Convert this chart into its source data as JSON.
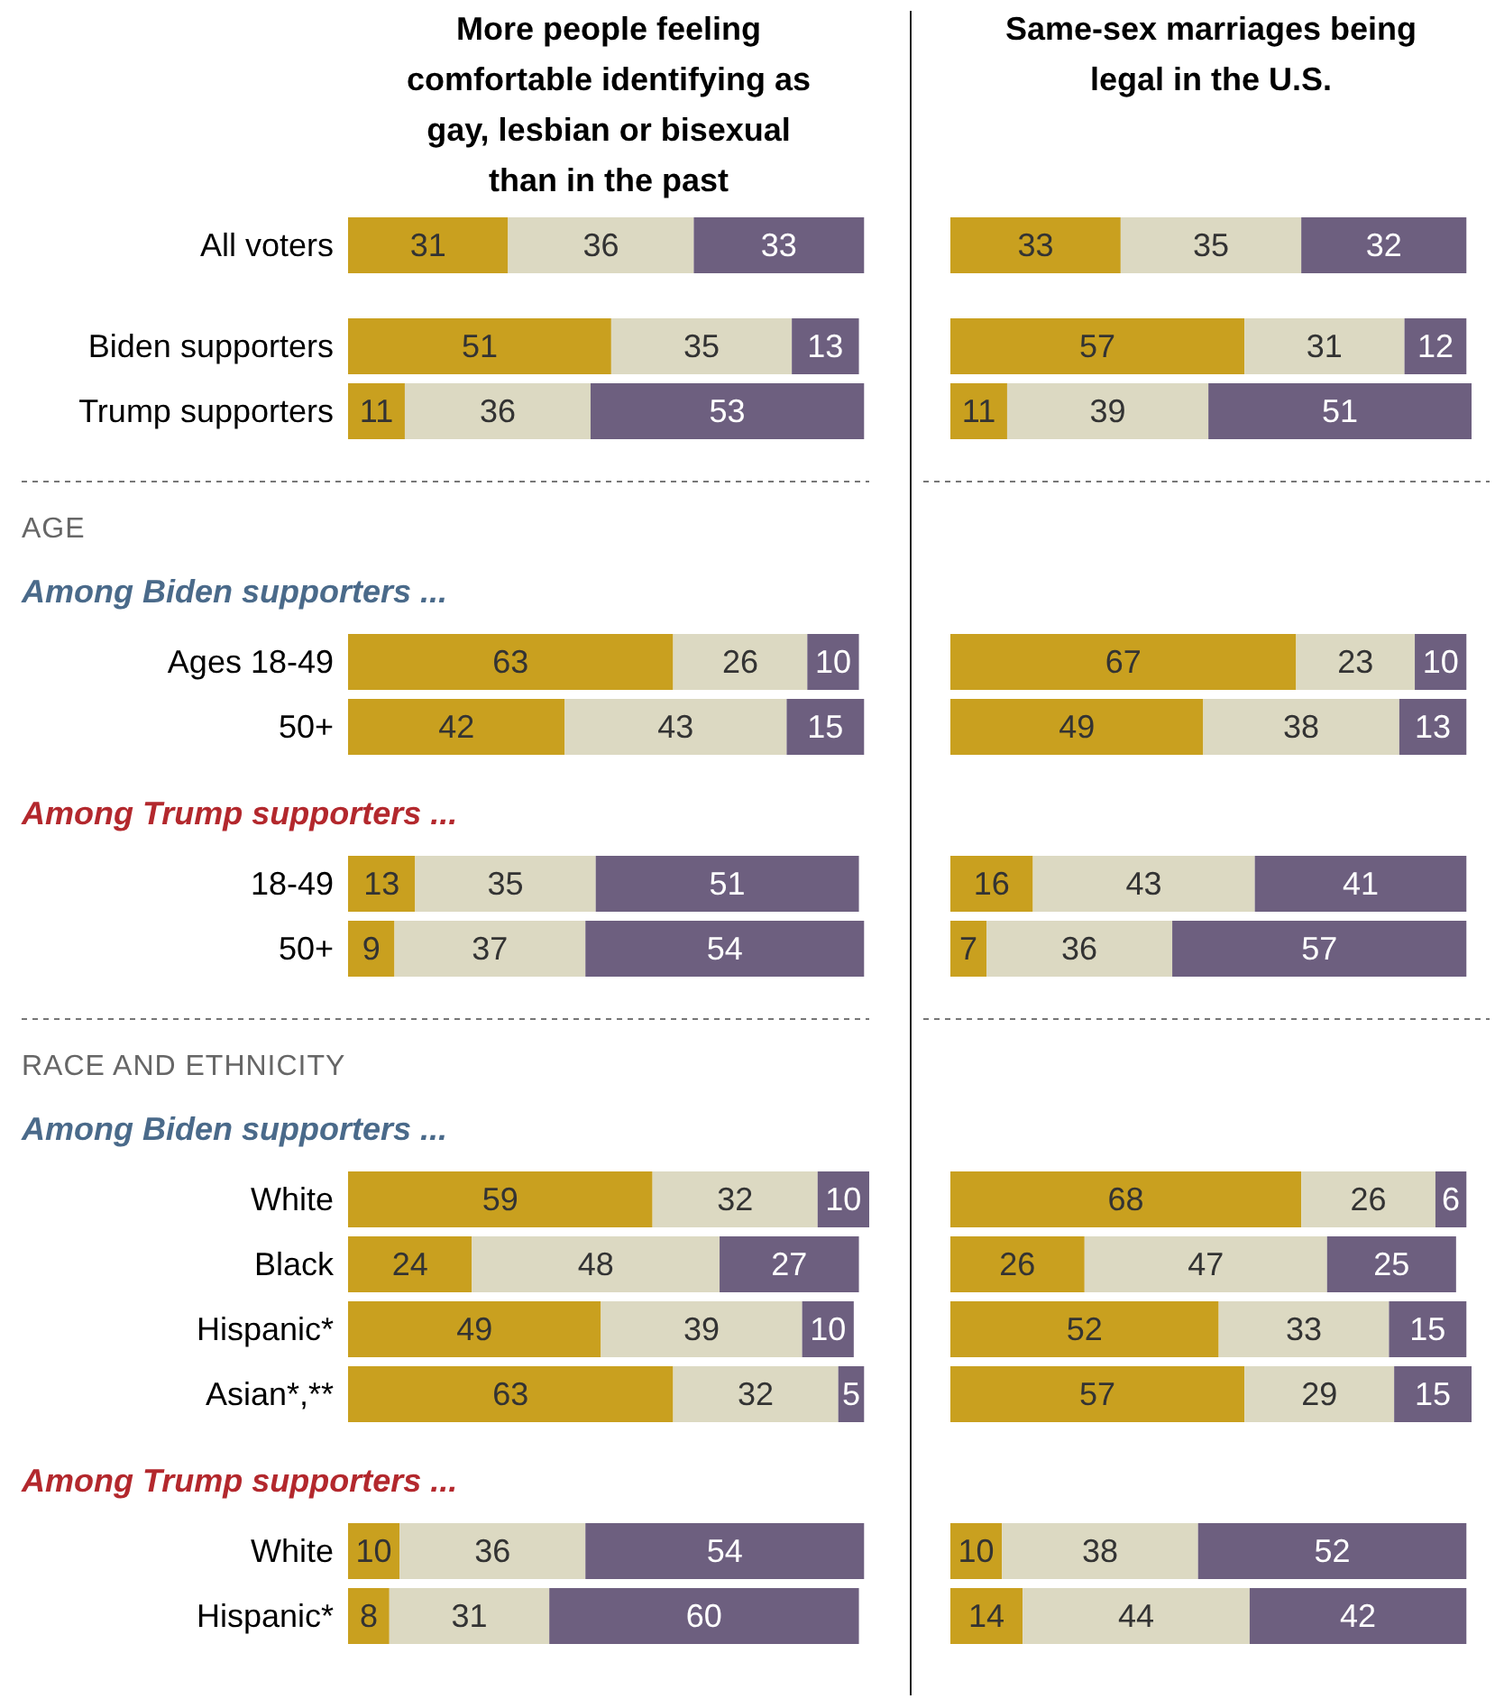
{
  "chart_data": [
    {
      "type": "bar",
      "orientation": "horizontal",
      "stacked": true,
      "data_labels": true,
      "xlim": [
        0,
        101
      ],
      "tick_labels": "y",
      "title": "More people feeling comfortable identifying as gay, lesbian or bisexual than in the past",
      "annotations": [
        "AGE",
        "Among Biden supporters ...",
        "Among Trump supporters ...",
        "RACE AND ETHNICITY",
        "Among Biden supporters ...",
        "Among Trump supporters ..."
      ],
      "categories": [
        "All voters",
        "Biden supporters",
        "Trump supporters",
        null,
        null,
        "Ages 18-49",
        "50+",
        null,
        "18-49",
        "50+",
        null,
        null,
        "White",
        "Black",
        "Hispanic*",
        "Asian*,**",
        null,
        "White",
        "Hispanic*"
      ],
      "series": [
        {
          "color": "#c9a01f",
          "values": [
            31,
            51,
            11,
            null,
            null,
            63,
            42,
            null,
            13,
            9,
            null,
            null,
            59,
            24,
            49,
            63,
            null,
            10,
            8
          ]
        },
        {
          "color": "#dcd9c2",
          "values": [
            36,
            35,
            36,
            null,
            null,
            26,
            43,
            null,
            35,
            37,
            null,
            null,
            32,
            48,
            39,
            32,
            null,
            36,
            31
          ]
        },
        {
          "color": "#6d5f7f",
          "values": [
            33,
            13,
            53,
            null,
            null,
            10,
            15,
            null,
            51,
            54,
            null,
            null,
            10,
            27,
            10,
            5,
            null,
            54,
            60
          ]
        }
      ]
    },
    {
      "type": "bar",
      "orientation": "horizontal",
      "stacked": true,
      "data_labels": true,
      "xlim": [
        0,
        101
      ],
      "tick_labels": false,
      "title": "Same-sex marriages being legal in the U.S.",
      "series": [
        {
          "color": "#c9a01f",
          "values": [
            33,
            57,
            11,
            null,
            null,
            67,
            49,
            null,
            16,
            7,
            null,
            null,
            68,
            26,
            52,
            57,
            null,
            10,
            14
          ]
        },
        {
          "color": "#dcd9c2",
          "values": [
            35,
            31,
            39,
            null,
            null,
            23,
            38,
            null,
            43,
            36,
            null,
            null,
            26,
            47,
            33,
            29,
            null,
            38,
            44
          ]
        },
        {
          "color": "#6d5f7f",
          "values": [
            32,
            12,
            51,
            null,
            null,
            10,
            13,
            null,
            41,
            57,
            null,
            null,
            6,
            25,
            15,
            15,
            null,
            52,
            42
          ]
        }
      ]
    }
  ]
}
